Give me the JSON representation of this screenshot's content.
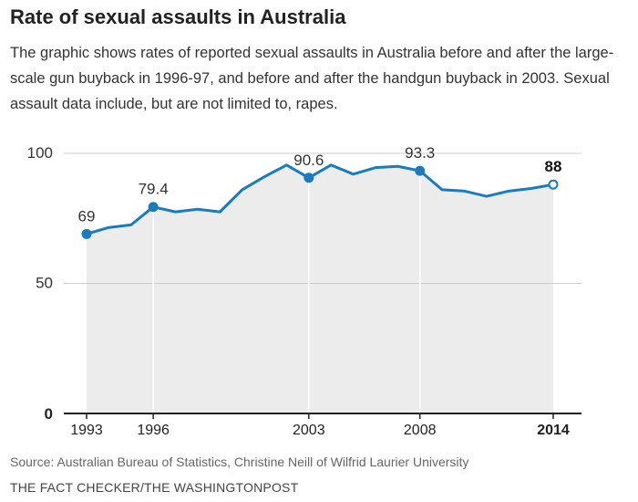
{
  "header": {
    "title": "Rate of sexual assaults in Australia",
    "subtitle": "The graphic shows rates of reported sexual assaults in Australia before and after the large-scale gun buyback in 1996-97, and before and after the handgun buyback in 2003. Sexual assault data include, but are not limited to, rapes."
  },
  "footer": {
    "source": "Source: Australian Bureau of Statistics, Christine Neill of Wilfrid Laurier University",
    "credit": "THE FACT CHECKER/THE WASHINGTONPOST"
  },
  "colors": {
    "line": "#1a7bbf",
    "area": "#ececec",
    "grid": "#cccccc",
    "axis": "#222222"
  },
  "chart_data": {
    "type": "area",
    "title": "Rate of sexual assaults in Australia",
    "xlabel": "",
    "ylabel": "",
    "xlim": [
      1993,
      2014
    ],
    "ylim": [
      0,
      100
    ],
    "yticks": [
      {
        "value": 0,
        "label": "0"
      },
      {
        "value": 50,
        "label": "50"
      },
      {
        "value": 100,
        "label": "100"
      }
    ],
    "xticks": [
      {
        "value": 1993,
        "label": "1993",
        "bold": false
      },
      {
        "value": 1996,
        "label": "1996",
        "bold": false
      },
      {
        "value": 2003,
        "label": "2003",
        "bold": false
      },
      {
        "value": 2008,
        "label": "2008",
        "bold": false
      },
      {
        "value": 2014,
        "label": "2014",
        "bold": true
      }
    ],
    "vertical_markers": [
      1996,
      2003,
      2008
    ],
    "x": [
      1993,
      1994,
      1995,
      1996,
      1997,
      1998,
      1999,
      2000,
      2001,
      2002,
      2003,
      2004,
      2005,
      2006,
      2007,
      2008,
      2009,
      2010,
      2011,
      2012,
      2013,
      2014
    ],
    "values": [
      69,
      71.5,
      72.5,
      79.4,
      77.5,
      78.5,
      77.5,
      86,
      91,
      95.5,
      90.6,
      95.5,
      92,
      94.5,
      95,
      93.3,
      86,
      85.5,
      83.5,
      85.5,
      86.5,
      88
    ],
    "annotations": [
      {
        "x": 1993,
        "value": 69,
        "label": "69",
        "bold": false,
        "open": false
      },
      {
        "x": 1996,
        "value": 79.4,
        "label": "79.4",
        "bold": false,
        "open": false
      },
      {
        "x": 2003,
        "value": 90.6,
        "label": "90.6",
        "bold": false,
        "open": false
      },
      {
        "x": 2008,
        "value": 93.3,
        "label": "93.3",
        "bold": false,
        "open": false
      },
      {
        "x": 2014,
        "value": 88,
        "label": "88",
        "bold": true,
        "open": true
      }
    ],
    "grid": true
  }
}
